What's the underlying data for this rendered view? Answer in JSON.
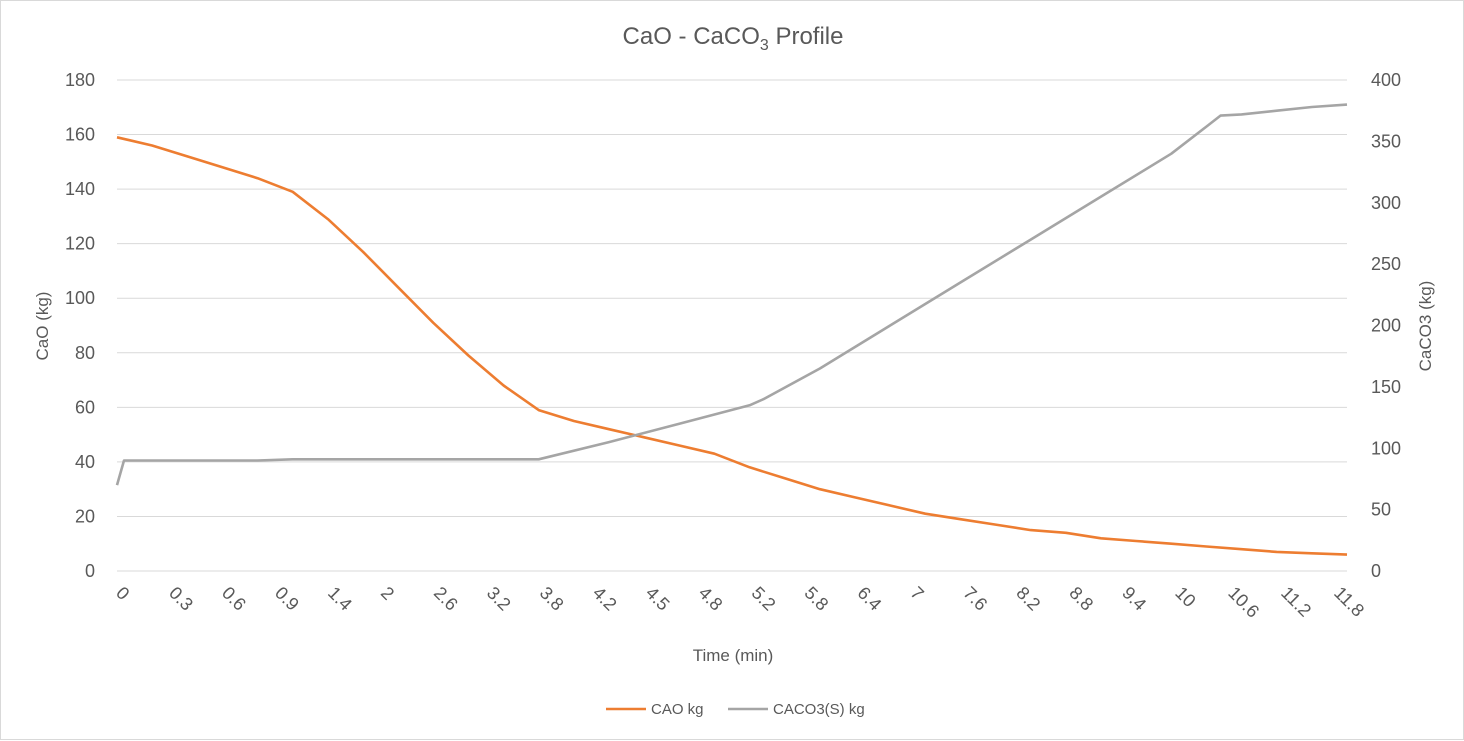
{
  "chart_data": {
    "type": "line",
    "title": {
      "main": "CaO - CaCO",
      "sub": "3",
      "rest": " Profile"
    },
    "xlabel": "Time (min)",
    "ylabel_left": "CaO (kg)",
    "ylabel_right": "CaCO3 (kg)",
    "ylim_left": [
      0,
      180
    ],
    "ylim_right": [
      0,
      400
    ],
    "yticks_left": [
      "0",
      "20",
      "40",
      "60",
      "80",
      "100",
      "120",
      "140",
      "160",
      "180"
    ],
    "yticks_right": [
      "0",
      "50",
      "100",
      "150",
      "200",
      "250",
      "300",
      "350",
      "400"
    ],
    "xticks": [
      "0",
      "0.3",
      "0.6",
      "0.9",
      "1.4",
      "2",
      "2.6",
      "3.2",
      "3.8",
      "4.2",
      "4.5",
      "4.8",
      "5.2",
      "5.8",
      "6.4",
      "7",
      "7.6",
      "8.2",
      "8.8",
      "9.4",
      "10",
      "10.6",
      "11.2",
      "11.8"
    ],
    "grid": true,
    "legend_position": "bottom",
    "series": [
      {
        "name": "CAO kg",
        "axis": "left",
        "color": "#ED7D31",
        "points": [
          [
            0,
            159
          ],
          [
            0.5,
            156
          ],
          [
            1.0,
            152
          ],
          [
            1.5,
            148
          ],
          [
            2.0,
            144
          ],
          [
            2.5,
            139
          ],
          [
            3.0,
            129
          ],
          [
            3.5,
            117
          ],
          [
            4.0,
            104
          ],
          [
            4.5,
            91
          ],
          [
            5.0,
            79
          ],
          [
            5.5,
            68
          ],
          [
            6.0,
            59
          ],
          [
            6.5,
            55
          ],
          [
            7.0,
            52
          ],
          [
            7.5,
            49
          ],
          [
            8.0,
            46
          ],
          [
            8.5,
            43
          ],
          [
            9.0,
            38
          ],
          [
            9.5,
            34
          ],
          [
            10.0,
            30
          ],
          [
            10.5,
            27
          ],
          [
            11.0,
            24
          ],
          [
            11.5,
            21
          ],
          [
            12.0,
            19
          ],
          [
            12.5,
            17
          ],
          [
            13.0,
            15
          ],
          [
            13.5,
            14
          ],
          [
            14.0,
            12
          ],
          [
            14.5,
            11
          ],
          [
            15.0,
            10
          ],
          [
            15.5,
            9
          ],
          [
            16.0,
            8
          ],
          [
            16.5,
            7
          ],
          [
            17.0,
            6.5
          ],
          [
            17.5,
            6
          ]
        ]
      },
      {
        "name": "CACO3(S) kg",
        "axis": "right",
        "color": "#A5A5A5",
        "points": [
          [
            0,
            70
          ],
          [
            0.1,
            90
          ],
          [
            2.0,
            90
          ],
          [
            2.5,
            91
          ],
          [
            5.0,
            91
          ],
          [
            6.0,
            91
          ],
          [
            7.0,
            105
          ],
          [
            8.0,
            120
          ],
          [
            9.0,
            135
          ],
          [
            9.2,
            140
          ],
          [
            10.0,
            165
          ],
          [
            11.0,
            200
          ],
          [
            12.0,
            235
          ],
          [
            13.0,
            270
          ],
          [
            14.0,
            305
          ],
          [
            15.0,
            340
          ],
          [
            15.5,
            362
          ],
          [
            15.7,
            371
          ],
          [
            16.0,
            372
          ],
          [
            16.5,
            375
          ],
          [
            17.0,
            378
          ],
          [
            17.5,
            380
          ]
        ]
      }
    ]
  }
}
